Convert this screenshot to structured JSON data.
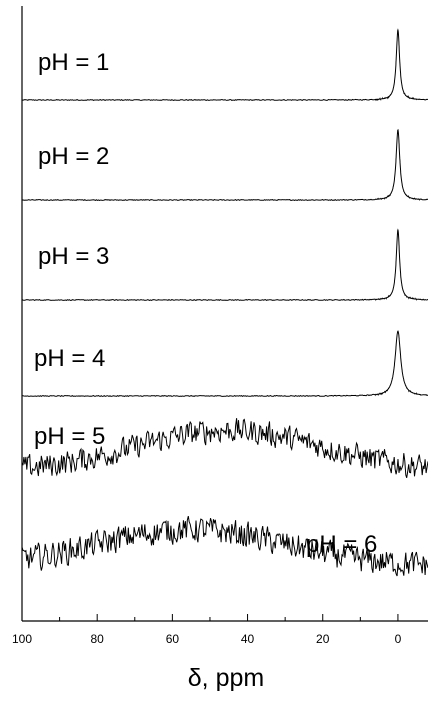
{
  "chart_data": {
    "type": "line",
    "xlabel": "δ, ppm",
    "x_axis": {
      "reversed": true,
      "xlim": [
        100,
        -8
      ],
      "ticks": [
        100,
        80,
        60,
        40,
        20,
        0
      ],
      "tick_labels": [
        "100",
        "80",
        "60",
        "40",
        "20",
        "0"
      ]
    },
    "y_axis": {
      "visible": false,
      "stacked_offsets": true
    },
    "grid": false,
    "legend": "none",
    "line_color": "#000000",
    "series": [
      {
        "name": "pH = 1",
        "kind": "peak",
        "center": 0,
        "width": 0.55,
        "height": 1.0
      },
      {
        "name": "pH = 2",
        "kind": "peak",
        "center": 0,
        "width": 0.6,
        "height": 1.0
      },
      {
        "name": "pH = 3",
        "kind": "peak",
        "center": 0,
        "width": 0.55,
        "height": 1.0
      },
      {
        "name": "pH = 4",
        "kind": "peak",
        "center": 0,
        "width": 0.9,
        "height": 0.9
      },
      {
        "name": "pH = 5",
        "kind": "broad",
        "center": 45,
        "width": 35,
        "height": 0.5,
        "noise": 0.28
      },
      {
        "name": "pH = 6",
        "kind": "broad",
        "center": 55,
        "width": 35,
        "height": 0.45,
        "noise": 0.3
      }
    ]
  }
}
